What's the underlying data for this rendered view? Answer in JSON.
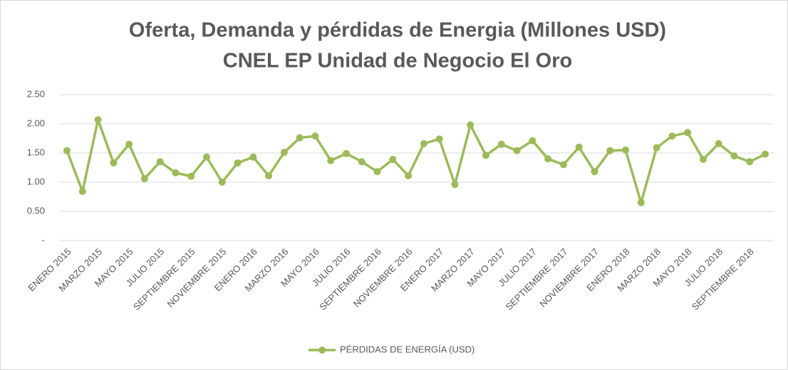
{
  "chart_data": {
    "type": "line",
    "title": [
      "Oferta, Demanda y pérdidas de Energia (Millones USD)",
      "CNEL EP Unidad de Negocio El Oro"
    ],
    "categories": [
      "ENERO 2015",
      null,
      "MARZO 2015",
      null,
      "MAYO 2015",
      null,
      "JULIO 2015",
      null,
      "SEPTIEMBRE 2015",
      null,
      "NOVIEMBRE 2015",
      null,
      "ENERO 2016",
      null,
      "MARZO 2016",
      null,
      "MAYO 2016",
      null,
      "JULIO 2016",
      null,
      "SEPTIEMBRE 2016",
      null,
      "NOVIEMBRE 2016",
      null,
      "ENERO 2017",
      null,
      "MARZO 2017",
      null,
      "MAYO 2017",
      null,
      "JULIO 2017",
      null,
      "SEPTIEMBRE 2017",
      null,
      "NOVIEMBRE 2017",
      null,
      "ENERO 2018",
      null,
      "MARZO 2018",
      null,
      "MAYO 2018",
      null,
      "JULIO 2018",
      null,
      "SEPTIEMBRE 2018",
      null
    ],
    "series": [
      {
        "name": "PÉRDIDAS DE ENERGÍA (USD)",
        "color": "#9bbb59",
        "values": [
          1.54,
          0.84,
          2.07,
          1.33,
          1.65,
          1.06,
          1.35,
          1.16,
          1.1,
          1.43,
          1.0,
          1.33,
          1.43,
          1.11,
          1.51,
          1.76,
          1.79,
          1.37,
          1.49,
          1.35,
          1.18,
          1.39,
          1.11,
          1.66,
          1.74,
          0.96,
          1.98,
          1.46,
          1.65,
          1.54,
          1.71,
          1.4,
          1.3,
          1.6,
          1.18,
          1.54,
          1.55,
          0.65,
          1.59,
          1.79,
          1.85,
          1.39,
          1.66,
          1.45,
          1.35,
          1.48
        ]
      }
    ],
    "ylim": [
      0,
      2.5
    ],
    "yticks": [
      {
        "value": 0,
        "label": "-"
      },
      {
        "value": 0.5,
        "label": "0.50"
      },
      {
        "value": 1,
        "label": "1.00"
      },
      {
        "value": 1.5,
        "label": "1.50"
      },
      {
        "value": 2,
        "label": "2.00"
      },
      {
        "value": 2.5,
        "label": "2.50"
      }
    ],
    "grid": true,
    "legend": "bottom"
  }
}
